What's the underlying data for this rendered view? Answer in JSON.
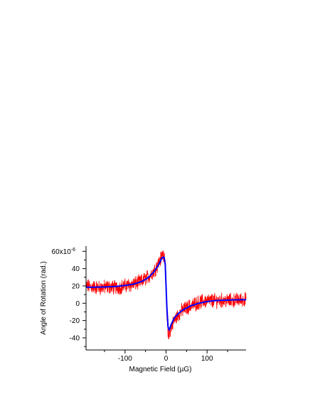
{
  "chart_data": {
    "type": "line",
    "xlabel": "Magnetic Field (µG)",
    "ylabel": "Angle of Rotation (rad.)",
    "xlim": [
      -195,
      195
    ],
    "ylim": [
      -54,
      66
    ],
    "x_ticks": [
      -100,
      0,
      100
    ],
    "x_tick_labels": [
      "-100",
      "0",
      "100"
    ],
    "y_ticks": [
      60,
      40,
      20,
      0,
      -20,
      -40
    ],
    "y_tick_labels": [
      "60x10",
      "40",
      "20",
      "0",
      "-20",
      "-40"
    ],
    "y_multiplier_exponent": "-6",
    "grid": false,
    "legend": "none",
    "series": [
      {
        "role": "measured",
        "color": "#ff0000",
        "x": [
          -195,
          -180,
          -160,
          -140,
          -120,
          -100,
          -80,
          -60,
          -40,
          -30,
          -20,
          -15,
          -10,
          -5,
          -2,
          0,
          2,
          5,
          8,
          12,
          20,
          30,
          40,
          60,
          80,
          100,
          120,
          140,
          160,
          180,
          195
        ],
        "y": [
          20,
          19,
          18,
          19,
          18,
          20,
          22,
          25,
          32,
          37,
          45,
          49,
          55,
          57,
          52,
          20,
          -15,
          -40,
          -35,
          -28,
          -20,
          -13,
          -8,
          -3,
          1,
          3,
          3,
          3,
          3,
          4,
          4
        ]
      },
      {
        "role": "fit",
        "color": "#0000ff",
        "x": [
          -195,
          -180,
          -160,
          -140,
          -120,
          -100,
          -80,
          -60,
          -50,
          -40,
          -30,
          -20,
          -15,
          -10,
          -5,
          -2,
          0,
          2,
          5,
          8,
          12,
          15,
          20,
          30,
          40,
          60,
          80,
          100,
          120,
          140,
          160,
          180,
          195
        ],
        "y": [
          18.5,
          18.5,
          18.7,
          19.0,
          19.5,
          20.5,
          22.0,
          25.0,
          27.5,
          31.0,
          36.0,
          43.0,
          47.5,
          52.5,
          53.5,
          45.0,
          20.0,
          -5.0,
          -28.0,
          -31.0,
          -25.0,
          -22.0,
          -17.0,
          -12.0,
          -8.0,
          -3.0,
          0.0,
          2.0,
          3.0,
          3.5,
          3.8,
          4.0,
          4.0
        ]
      }
    ]
  }
}
